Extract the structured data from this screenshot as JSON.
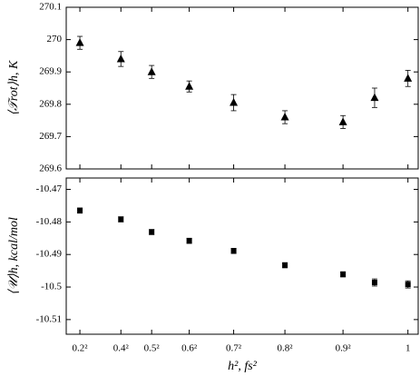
{
  "chart_data": [
    {
      "type": "scatter",
      "marker": "triangle",
      "color": "#000000",
      "ylabel": "⟨𝒯rot⟩h, K",
      "x": [
        0.04,
        0.16,
        0.25,
        0.36,
        0.49,
        0.64,
        0.81,
        0.9025,
        1
      ],
      "series": [
        {
          "values": [
            269.99,
            269.94,
            269.9,
            269.855,
            269.805,
            269.76,
            269.745,
            269.82,
            269.88
          ],
          "errors": [
            0.02,
            0.023,
            0.02,
            0.017,
            0.025,
            0.02,
            0.02,
            0.03,
            0.025
          ]
        }
      ],
      "xlim": [
        0,
        1.03
      ],
      "xticks": [
        0.04,
        0.16,
        0.25,
        0.36,
        0.49,
        0.64,
        0.81,
        1
      ],
      "ylim": [
        269.6,
        270.1
      ],
      "yticks": [
        269.6,
        269.7,
        269.8,
        269.9,
        270,
        270.1
      ]
    },
    {
      "type": "scatter",
      "marker": "square",
      "color": "#000000",
      "ylabel": "⟨𝒰⟩h, kcal/mol",
      "xlabel": "h², fs²",
      "x": [
        0.04,
        0.16,
        0.25,
        0.36,
        0.49,
        0.64,
        0.81,
        0.9025,
        1
      ],
      "series": [
        {
          "values": [
            -10.4765,
            -10.4792,
            -10.4831,
            -10.4858,
            -10.4889,
            -10.4933,
            -10.4961,
            -10.4986,
            -10.4992
          ],
          "errors": [
            0.0008,
            0.0008,
            0.0008,
            0.0008,
            0.0008,
            0.0008,
            0.0008,
            0.0011,
            0.0011
          ]
        }
      ],
      "xlim": [
        0,
        1.03
      ],
      "xticks": [
        {
          "value": 0.04,
          "label": "0.2²"
        },
        {
          "value": 0.16,
          "label": "0.4²"
        },
        {
          "value": 0.25,
          "label": "0.5²"
        },
        {
          "value": 0.36,
          "label": "0.6²"
        },
        {
          "value": 0.49,
          "label": "0.7²"
        },
        {
          "value": 0.64,
          "label": "0.8²"
        },
        {
          "value": 0.81,
          "label": "0.9²"
        },
        1
      ],
      "ylim": [
        -10.5145,
        -10.4665
      ],
      "yticks": [
        -10.51,
        -10.5,
        -10.49,
        -10.48,
        -10.47
      ]
    }
  ]
}
